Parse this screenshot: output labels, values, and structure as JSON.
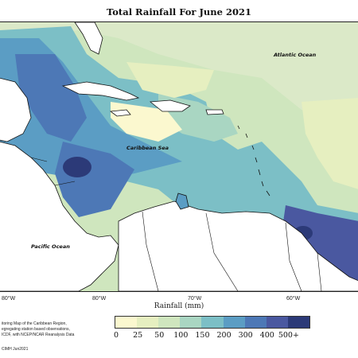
{
  "title": "Total Rainfall For June 2021",
  "map": {
    "ocean_labels": {
      "atlantic": "Atlantic Ocean",
      "caribbean": "Caribbean Sea",
      "pacific": "Pacific Ocean"
    },
    "longitude_ticks": [
      "80°W",
      "80°W",
      "70°W",
      "60°W"
    ],
    "colors": {
      "land": "#ffffff",
      "coastline": "#111111"
    }
  },
  "axis": {
    "xlabel": "Rainfall (mm)"
  },
  "legend": {
    "labels": [
      "0",
      "25",
      "50",
      "100",
      "150",
      "200",
      "300",
      "400",
      "500+"
    ],
    "colors": [
      "#fbf8cf",
      "#e6efc0",
      "#cfe6be",
      "#a9d6c2",
      "#7cbfc6",
      "#5b9dc4",
      "#4d78b6",
      "#4a58a0",
      "#2c3a78"
    ]
  },
  "notes": {
    "line1": "itoring Map of the Caribbean Region,",
    "line2": "egregating station based observations,",
    "line3": "ICDF, with NCEP/NCAR Reanalysis Data",
    "credit": "CIMH Jun2021"
  }
}
